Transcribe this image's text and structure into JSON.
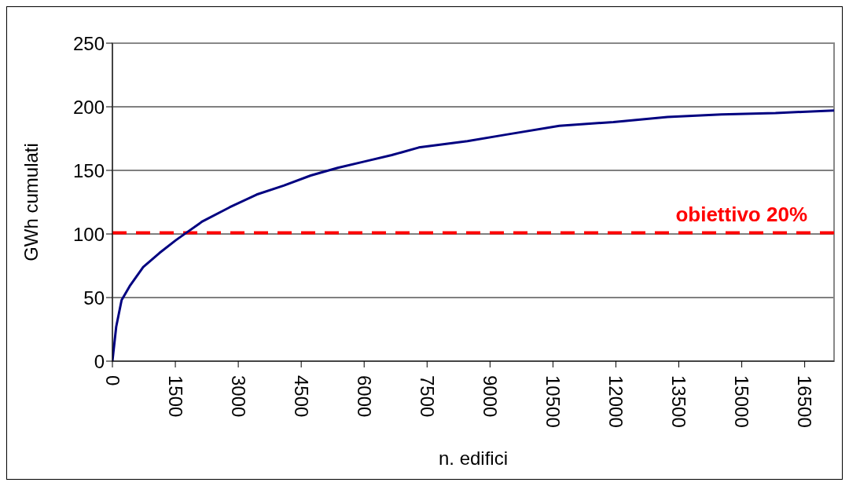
{
  "chart_data": {
    "type": "line",
    "xlabel": "n. edifici",
    "ylabel": "GWh cumulati",
    "color": "#000080",
    "x": [
      0,
      90,
      219,
      412,
      734,
      1120,
      1507,
      1764,
      2150,
      2796,
      3439,
      4083,
      4728,
      5371,
      6015,
      6659,
      7303,
      8462,
      9365,
      10652,
      11940,
      13229,
      14516,
      15804,
      16443,
      17200
    ],
    "values": [
      0,
      27,
      48,
      59,
      74,
      85,
      95,
      101,
      110,
      121,
      131,
      138,
      146,
      152,
      157,
      162,
      168,
      173,
      178,
      185,
      188,
      192,
      194,
      195,
      196,
      197
    ],
    "xlim": [
      0,
      17200
    ],
    "xticks": [
      0,
      1500,
      3000,
      4500,
      6000,
      7500,
      9000,
      10500,
      12000,
      13500,
      15000,
      16500
    ],
    "ylim": [
      0,
      250
    ],
    "yticks": [
      0,
      50,
      100,
      150,
      200,
      250
    ],
    "grid": "y",
    "ref_lines": [
      {
        "axis": "y",
        "value": 101,
        "label": "obiettivo 20%",
        "color": "#ff0000",
        "line_style": "dashed"
      }
    ]
  }
}
